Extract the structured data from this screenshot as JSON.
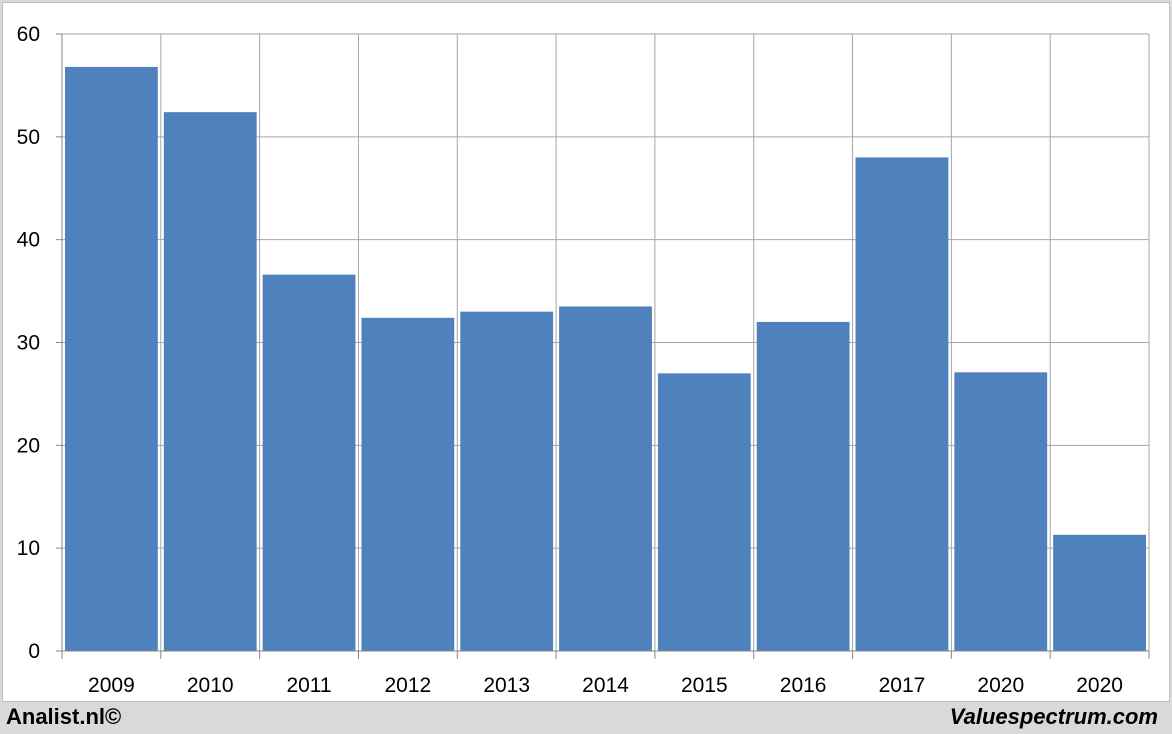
{
  "chart_data": {
    "type": "bar",
    "title": "",
    "xlabel": "",
    "ylabel": "",
    "categories": [
      "2009",
      "2010",
      "2011",
      "2012",
      "2013",
      "2014",
      "2015",
      "2016",
      "2017",
      "2020",
      "2020"
    ],
    "values": [
      56.8,
      52.4,
      36.6,
      32.4,
      33.0,
      33.5,
      27.0,
      32.0,
      48.0,
      27.1,
      11.3
    ],
    "ylim": [
      0,
      60
    ],
    "yticks": [
      0,
      10,
      20,
      30,
      40,
      50,
      60
    ],
    "grid": true,
    "legend": "none",
    "bar_color": "#4f81bd",
    "grid_color": "#a6a6a6"
  },
  "footer": {
    "left": "Analist.nl©",
    "right": "Valuespectrum.com"
  }
}
